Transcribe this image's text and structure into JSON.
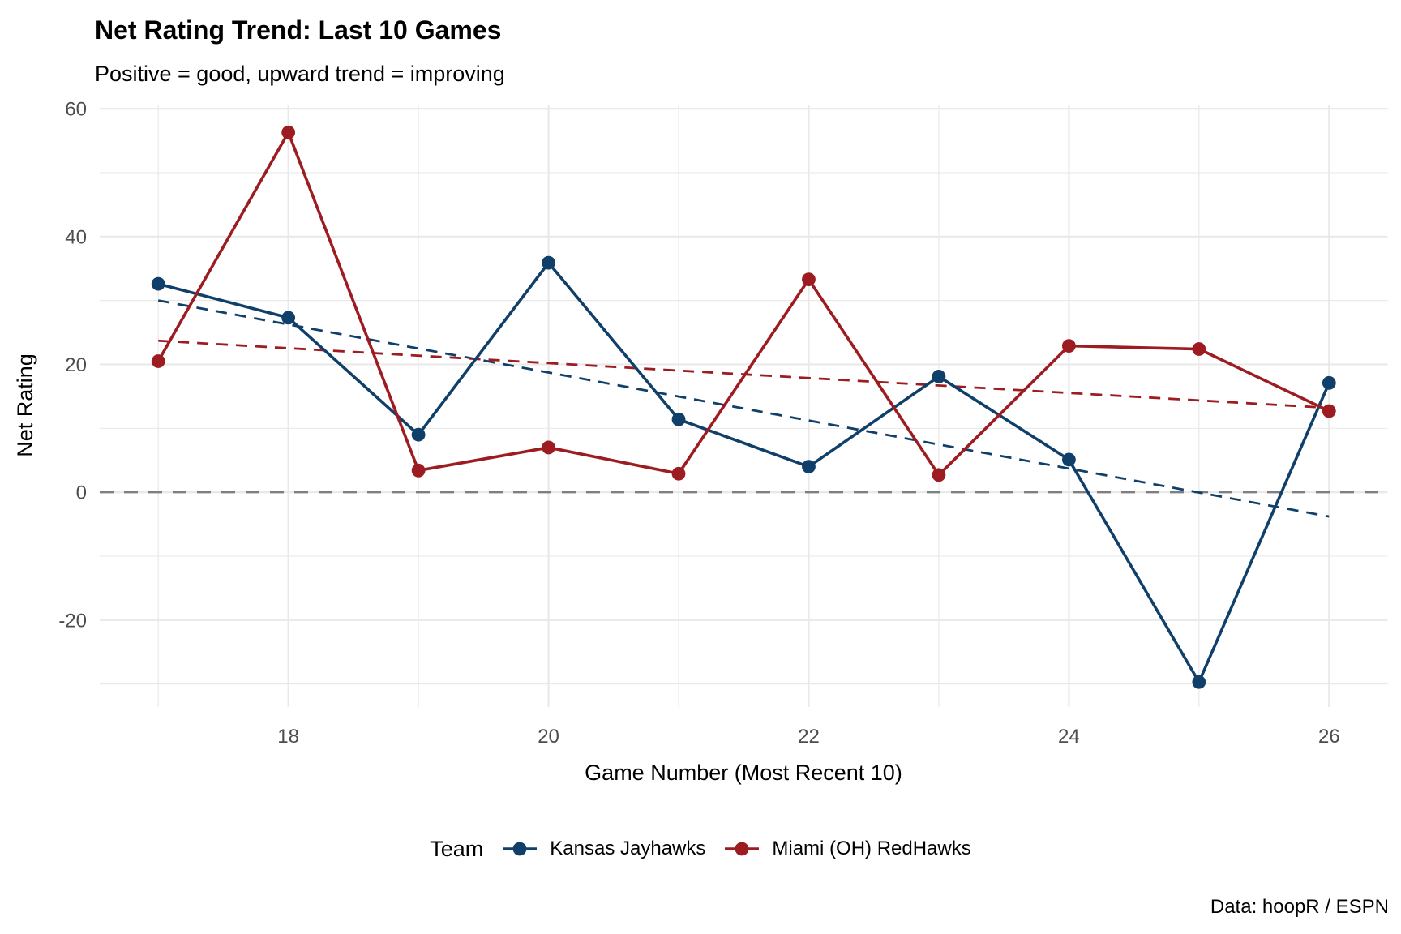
{
  "header": {
    "title": "Net Rating Trend: Last 10 Games",
    "subtitle": "Positive = good, upward trend = improving"
  },
  "caption": "Data: hoopR / ESPN",
  "legend": {
    "title": "Team"
  },
  "colors": {
    "background": "#FFFFFF",
    "grid": "#E9E9E9",
    "zero_line": "#7F7F7F",
    "tick_text": "#4D4D4D",
    "text": "#000000",
    "kansas_blue": "#10406A",
    "miami_red": "#9D1C21"
  },
  "chart_data": {
    "type": "line",
    "title": "Net Rating Trend: Last 10 Games",
    "subtitle": "Positive = good, upward trend = improving",
    "xlabel": "Game Number (Most Recent 10)",
    "ylabel": "Net Rating",
    "x": [
      17,
      18,
      19,
      20,
      21,
      22,
      23,
      24,
      25,
      26
    ],
    "series": [
      {
        "name": "Kansas Jayhawks",
        "color": "#10406A",
        "values": [
          32.6,
          27.3,
          9.0,
          35.9,
          11.4,
          4.0,
          18.1,
          5.1,
          -29.7,
          17.1
        ],
        "trend_line": {
          "x_start": 17,
          "y_start": 30.0,
          "x_end": 26,
          "y_end": -3.8
        }
      },
      {
        "name": "Miami (OH) RedHawks",
        "color": "#9D1C21",
        "values": [
          20.5,
          56.3,
          3.4,
          7.0,
          2.9,
          33.3,
          2.7,
          22.9,
          22.4,
          12.7
        ],
        "trend_line": {
          "x_start": 17,
          "y_start": 23.7,
          "x_end": 26,
          "y_end": 13.2
        }
      }
    ],
    "x_ticks": [
      18,
      20,
      22,
      24,
      26
    ],
    "x_minor_ticks": [
      17,
      19,
      21,
      23,
      25
    ],
    "y_ticks": [
      60,
      40,
      20,
      0,
      -20
    ],
    "y_minor_ticks": [
      50,
      30,
      10,
      -10,
      -30
    ],
    "xlim": [
      16.55,
      26.45
    ],
    "ylim": [
      -33.6,
      60.65
    ],
    "zero_line": 0,
    "grid": true,
    "legend_position": "bottom"
  }
}
